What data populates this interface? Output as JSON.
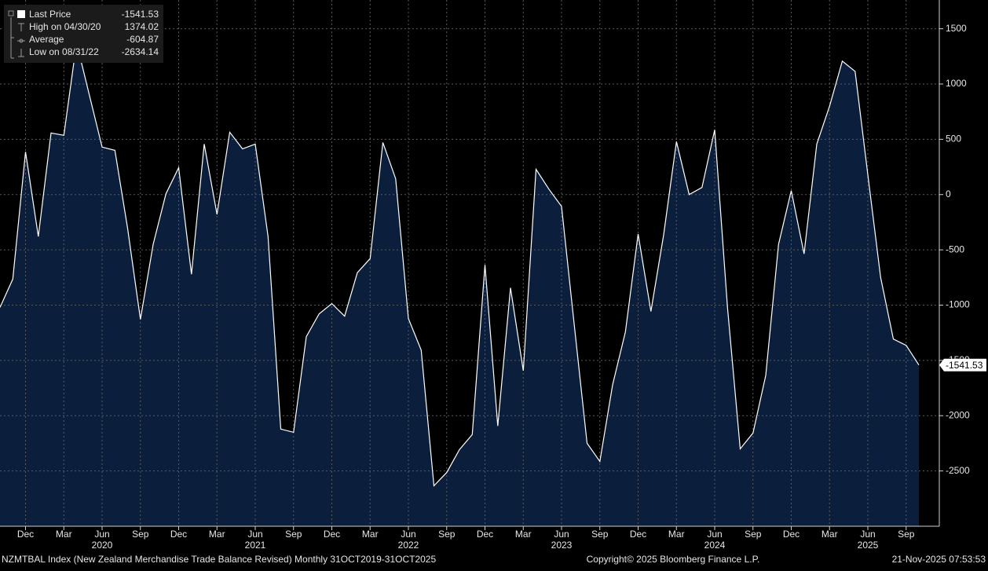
{
  "chart_data": {
    "type": "area",
    "x": [
      "2019-10",
      "2019-11",
      "2019-12",
      "2020-01",
      "2020-02",
      "2020-03",
      "2020-04",
      "2020-05",
      "2020-06",
      "2020-07",
      "2020-08",
      "2020-09",
      "2020-10",
      "2020-11",
      "2020-12",
      "2021-01",
      "2021-02",
      "2021-03",
      "2021-04",
      "2021-05",
      "2021-06",
      "2021-07",
      "2021-08",
      "2021-09",
      "2021-10",
      "2021-11",
      "2021-12",
      "2022-01",
      "2022-02",
      "2022-03",
      "2022-04",
      "2022-05",
      "2022-06",
      "2022-07",
      "2022-08",
      "2022-09",
      "2022-10",
      "2022-11",
      "2022-12",
      "2023-01",
      "2023-02",
      "2023-03",
      "2023-04",
      "2023-05",
      "2023-06",
      "2023-07",
      "2023-08",
      "2023-09",
      "2023-10",
      "2023-11",
      "2023-12",
      "2024-01",
      "2024-02",
      "2024-03",
      "2024-04",
      "2024-05",
      "2024-06",
      "2024-07",
      "2024-08",
      "2024-09",
      "2024-10",
      "2024-11",
      "2024-12",
      "2025-01",
      "2025-02",
      "2025-03",
      "2025-04",
      "2025-05",
      "2025-06",
      "2025-07",
      "2025-08",
      "2025-09",
      "2025-10"
    ],
    "values": [
      -1021,
      -764,
      386,
      -379,
      557,
      536,
      1374.02,
      900,
      429,
      400,
      -307,
      -1129,
      -450,
      7,
      243,
      -721,
      457,
      -179,
      564,
      414,
      457,
      -379,
      -2121,
      -2150,
      -1286,
      -1079,
      -986,
      -1100,
      -707,
      -579,
      471,
      143,
      -1121,
      -1407,
      -2634.14,
      -2514,
      -2307,
      -2171,
      -636,
      -2093,
      -843,
      -1593,
      229,
      50,
      -107,
      -1186,
      -2250,
      -2414,
      -1721,
      -1243,
      -357,
      -1057,
      -364,
      479,
      0,
      64,
      586,
      -1021,
      -2300,
      -2157,
      -1636,
      -450,
      36,
      -536,
      457,
      800,
      1207,
      1114,
      179,
      -750,
      -1307,
      -1364,
      -1541.53
    ],
    "color": "#ffffff",
    "fill_color": "#0b1f3d",
    "ylim": [
      -3000,
      1760
    ],
    "yticks": [
      -2500,
      -2000,
      -1500,
      -1000,
      -500,
      0,
      500,
      1000,
      1500
    ],
    "xticks": [
      {
        "value": "2019-12",
        "label": "Dec"
      },
      {
        "value": "2020-03",
        "label": "Mar"
      },
      {
        "value": "2020-06",
        "label": "Jun"
      },
      {
        "value": "2020-09",
        "label": "Sep"
      },
      {
        "value": "2020-12",
        "label": "Dec"
      },
      {
        "value": "2021-03",
        "label": "Mar"
      },
      {
        "value": "2021-06",
        "label": "Jun"
      },
      {
        "value": "2021-09",
        "label": "Sep"
      },
      {
        "value": "2021-12",
        "label": "Dec"
      },
      {
        "value": "2022-03",
        "label": "Mar"
      },
      {
        "value": "2022-06",
        "label": "Jun"
      },
      {
        "value": "2022-09",
        "label": "Sep"
      },
      {
        "value": "2022-12",
        "label": "Dec"
      },
      {
        "value": "2023-03",
        "label": "Mar"
      },
      {
        "value": "2023-06",
        "label": "Jun"
      },
      {
        "value": "2023-09",
        "label": "Sep"
      },
      {
        "value": "2023-12",
        "label": "Dec"
      },
      {
        "value": "2024-03",
        "label": "Mar"
      },
      {
        "value": "2024-06",
        "label": "Jun"
      },
      {
        "value": "2024-09",
        "label": "Sep"
      },
      {
        "value": "2024-12",
        "label": "Dec"
      },
      {
        "value": "2025-03",
        "label": "Mar"
      },
      {
        "value": "2025-06",
        "label": "Jun"
      },
      {
        "value": "2025-09",
        "label": "Sep"
      }
    ],
    "year_labels": [
      {
        "value": "2020-06",
        "label": "2020"
      },
      {
        "value": "2021-06",
        "label": "2021"
      },
      {
        "value": "2022-06",
        "label": "2022"
      },
      {
        "value": "2023-06",
        "label": "2023"
      },
      {
        "value": "2024-06",
        "label": "2024"
      },
      {
        "value": "2025-06",
        "label": "2025"
      }
    ],
    "grid": true,
    "legend": {
      "last_label": "Last Price",
      "high_label": "High on 04/30/20",
      "average_label": "Average",
      "average": -604.87,
      "low_label": "Low on 08/31/22"
    },
    "footer_left": "NZMTBAL Index (New Zealand Merchandise Trade Balance Revised) Monthly 31OCT2019-31OCT2025",
    "footer_center": "Copyright© 2025 Bloomberg Finance L.P.",
    "footer_right": "21-Nov-2025 07:53:53"
  }
}
